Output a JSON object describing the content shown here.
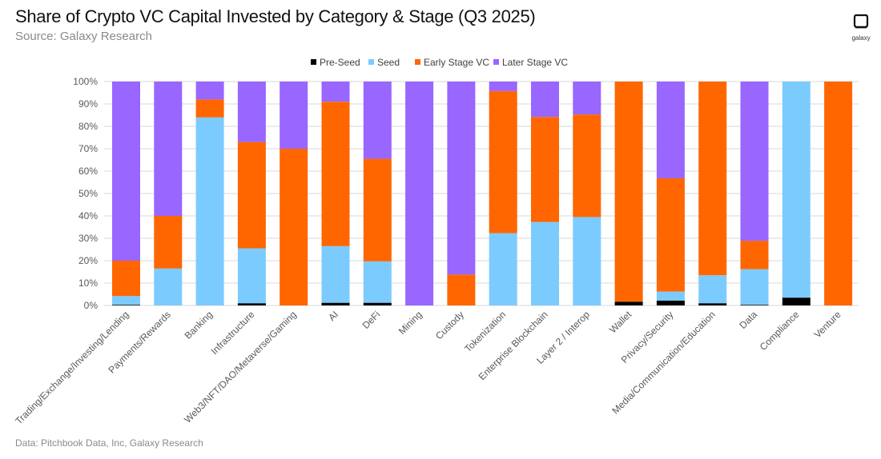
{
  "header": {
    "title": "Share of Crypto VC Capital Invested by Category & Stage (Q3 2025)",
    "subtitle": "Source: Galaxy Research"
  },
  "footer": {
    "text": "Data: Pitchbook Data, Inc, Galaxy Research"
  },
  "logo": {
    "text": "galaxy"
  },
  "chart_data": {
    "type": "bar",
    "stacked": true,
    "percent": true,
    "title": "Share of Crypto VC Capital Invested by Category & Stage (Q3 2025)",
    "ylim": [
      0,
      100
    ],
    "yticks": [
      "0%",
      "10%",
      "20%",
      "30%",
      "40%",
      "50%",
      "60%",
      "70%",
      "80%",
      "90%",
      "100%"
    ],
    "grid": true,
    "legend_position": "top",
    "categories": [
      "Trading/Exchange/Investing/Lending",
      "Payments/Rewards",
      "Banking",
      "Infrastructure",
      "Web3/NFT/DAO/Metaverse/Gaming",
      "AI",
      "DeFi",
      "Mining",
      "Custody",
      "Tokenization",
      "Enterprise Blockchain",
      "Layer 2 / Interop",
      "Wallet",
      "Privacy/Security",
      "Media/Communication/Education",
      "Data",
      "Compliance",
      "Venture"
    ],
    "series": [
      {
        "name": "Pre-Seed",
        "color": "#000000",
        "values": [
          0.3,
          0,
          0,
          1,
          0,
          1.2,
          1.2,
          0,
          0,
          0,
          0,
          0,
          1.7,
          2.2,
          1,
          0.3,
          3.5,
          0
        ]
      },
      {
        "name": "Seed",
        "color": "#7ccbff",
        "values": [
          3.9,
          16.5,
          84,
          24.5,
          0,
          25.3,
          18.5,
          0,
          0,
          32.3,
          37.3,
          39.5,
          0,
          4,
          12.5,
          15.9,
          96.5,
          0
        ]
      },
      {
        "name": "Early Stage VC",
        "color": "#ff6600",
        "values": [
          15.8,
          23.5,
          8,
          47.5,
          70,
          64.5,
          45.8,
          0,
          13.8,
          63.5,
          46.9,
          45.8,
          98.3,
          50.6,
          86.5,
          12.7,
          0,
          100
        ]
      },
      {
        "name": "Later Stage VC",
        "color": "#9966ff",
        "values": [
          80,
          60,
          8,
          27,
          30,
          9,
          34.5,
          100,
          86.2,
          4.2,
          15.8,
          14.7,
          0,
          43.2,
          0,
          71.1,
          0,
          0
        ]
      }
    ]
  }
}
